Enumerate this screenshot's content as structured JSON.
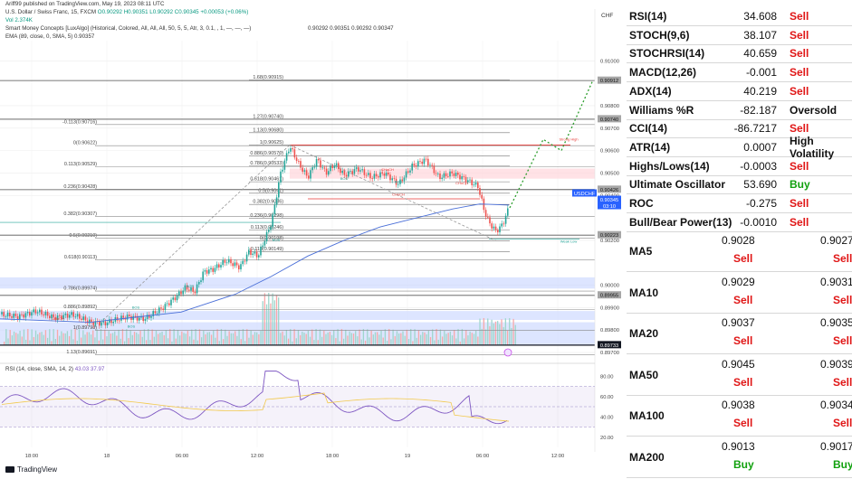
{
  "header": {
    "published": "Ariff99 published on TradingView.com, May 19, 2023 08:11 UTC",
    "symbol_line": "U.S. Dollar / Swiss Franc, 15, FXCM",
    "ohlc": "O0.90292 H0.90351 L0.90292 C0.90345 +0.00053 (+0.06%)",
    "vol": "Vol  2.374K",
    "smc": "Smart Money Concepts [LuxAlgo] (Historical, Colored, All, All, All, 50, 5, 5, Atr, 3, 0.1, , 1, —, —, —)",
    "ema": "EMA (89, close, 0, SMA, 5)  0.90357",
    "ema_value": "0.90292  0.90351  0.90292  0.90347",
    "rsi_label": "RSI (14, close, SMA, 14, 2)",
    "rsi_value": "43.03  37.97",
    "branding": "TradingView",
    "currency": "CHF"
  },
  "chart": {
    "price_axis": [
      "0.91000",
      "0.90800",
      "0.90700",
      "0.90600",
      "0.90500",
      "0.90400",
      "0.90200",
      "0.90000",
      "0.89900",
      "0.89800",
      "0.89700"
    ],
    "rsi_axis": [
      "80.00",
      "60.00",
      "40.00",
      "20.00"
    ],
    "time_axis": [
      "18:00",
      "18",
      "06:00",
      "12:00",
      "18:00",
      "19",
      "06:00",
      "12:00"
    ],
    "price_tags": [
      {
        "text": "0.90912",
        "bg": "#a6a6a6",
        "fg": "#111111"
      },
      {
        "text": "0.90740",
        "bg": "#a6a6a6",
        "fg": "#111111"
      },
      {
        "text": "0.90426",
        "bg": "#a6a6a6",
        "fg": "#111111"
      },
      {
        "text": "USDCHF",
        "bg": "#2962ff",
        "fg": "#ffffff"
      },
      {
        "text": "0.90345",
        "bg": "#2962ff",
        "fg": "#ffffff"
      },
      {
        "text": "03:10",
        "bg": "#2962ff",
        "fg": "#ffffff"
      },
      {
        "text": "0.90223",
        "bg": "#a6a6a6",
        "fg": "#111111"
      },
      {
        "text": "0.89955",
        "bg": "#a6a6a6",
        "fg": "#111111"
      },
      {
        "text": "0.89733",
        "bg": "#131722",
        "fg": "#ffffff"
      }
    ],
    "fib_upper": [
      "1.68(0.90915)",
      "1.27(0.90740)",
      "1.13(0.90680)",
      "1(0.90625)",
      "0.886(0.90576)",
      "0.786(0.90533)",
      "0.618(0.90461)",
      "0.5(0.9041)",
      "0.382(0.9036)",
      "0.236(0.90298)",
      "0.113(0.90246)",
      "0(0.90198)",
      "-0.113(0.90149)"
    ],
    "fib_lower": [
      "-0.113(0.90716)",
      "0(0.90622)",
      "0.113(0.90529)",
      "0.236(0.90428)",
      "0.382(0.90307)",
      "0.5(0.90210)",
      "0.618(0.90113)",
      "0.786(0.89974)",
      "0.886(0.89892)",
      "1(0.89798)",
      "1.13(0.89691)"
    ],
    "annotations": [
      "CHoCH",
      "CHoCH",
      "BOS",
      "BOS",
      "BOS",
      "BOS",
      "CHoCH",
      "CHoCH",
      "Strong High",
      "Weak Low",
      "BOS",
      "BOS"
    ]
  },
  "indicators": [
    {
      "name": "RSI(14)",
      "value": "34.608",
      "action": "Sell"
    },
    {
      "name": "STOCH(9,6)",
      "value": "38.107",
      "action": "Sell"
    },
    {
      "name": "STOCHRSI(14)",
      "value": "40.659",
      "action": "Sell"
    },
    {
      "name": "MACD(12,26)",
      "value": "-0.001",
      "action": "Sell"
    },
    {
      "name": "ADX(14)",
      "value": "40.219",
      "action": "Sell"
    },
    {
      "name": "Williams %R",
      "value": "-82.187",
      "action": "Oversold"
    },
    {
      "name": "CCI(14)",
      "value": "-86.7217",
      "action": "Sell"
    },
    {
      "name": "ATR(14)",
      "value": "0.0007",
      "action": "High Volatility"
    },
    {
      "name": "Highs/Lows(14)",
      "value": "-0.0003",
      "action": "Sell"
    },
    {
      "name": "Ultimate Oscillator",
      "value": "53.690",
      "action": "Buy"
    },
    {
      "name": "ROC",
      "value": "-0.275",
      "action": "Sell"
    },
    {
      "name": "Bull/Bear Power(13)",
      "value": "-0.0010",
      "action": "Sell"
    }
  ],
  "moving_averages": [
    {
      "name": "MA5",
      "simple": "0.9028",
      "simple_action": "Sell",
      "exp": "0.9027",
      "exp_action": "Sell"
    },
    {
      "name": "MA10",
      "simple": "0.9029",
      "simple_action": "Sell",
      "exp": "0.9031",
      "exp_action": "Sell"
    },
    {
      "name": "MA20",
      "simple": "0.9037",
      "simple_action": "Sell",
      "exp": "0.9035",
      "exp_action": "Sell"
    },
    {
      "name": "MA50",
      "simple": "0.9045",
      "simple_action": "Sell",
      "exp": "0.9039",
      "exp_action": "Sell"
    },
    {
      "name": "MA100",
      "simple": "0.9038",
      "simple_action": "Sell",
      "exp": "0.9034",
      "exp_action": "Sell"
    },
    {
      "name": "MA200",
      "simple": "0.9013",
      "simple_action": "Buy",
      "exp": "0.9017",
      "exp_action": "Buy"
    }
  ]
}
